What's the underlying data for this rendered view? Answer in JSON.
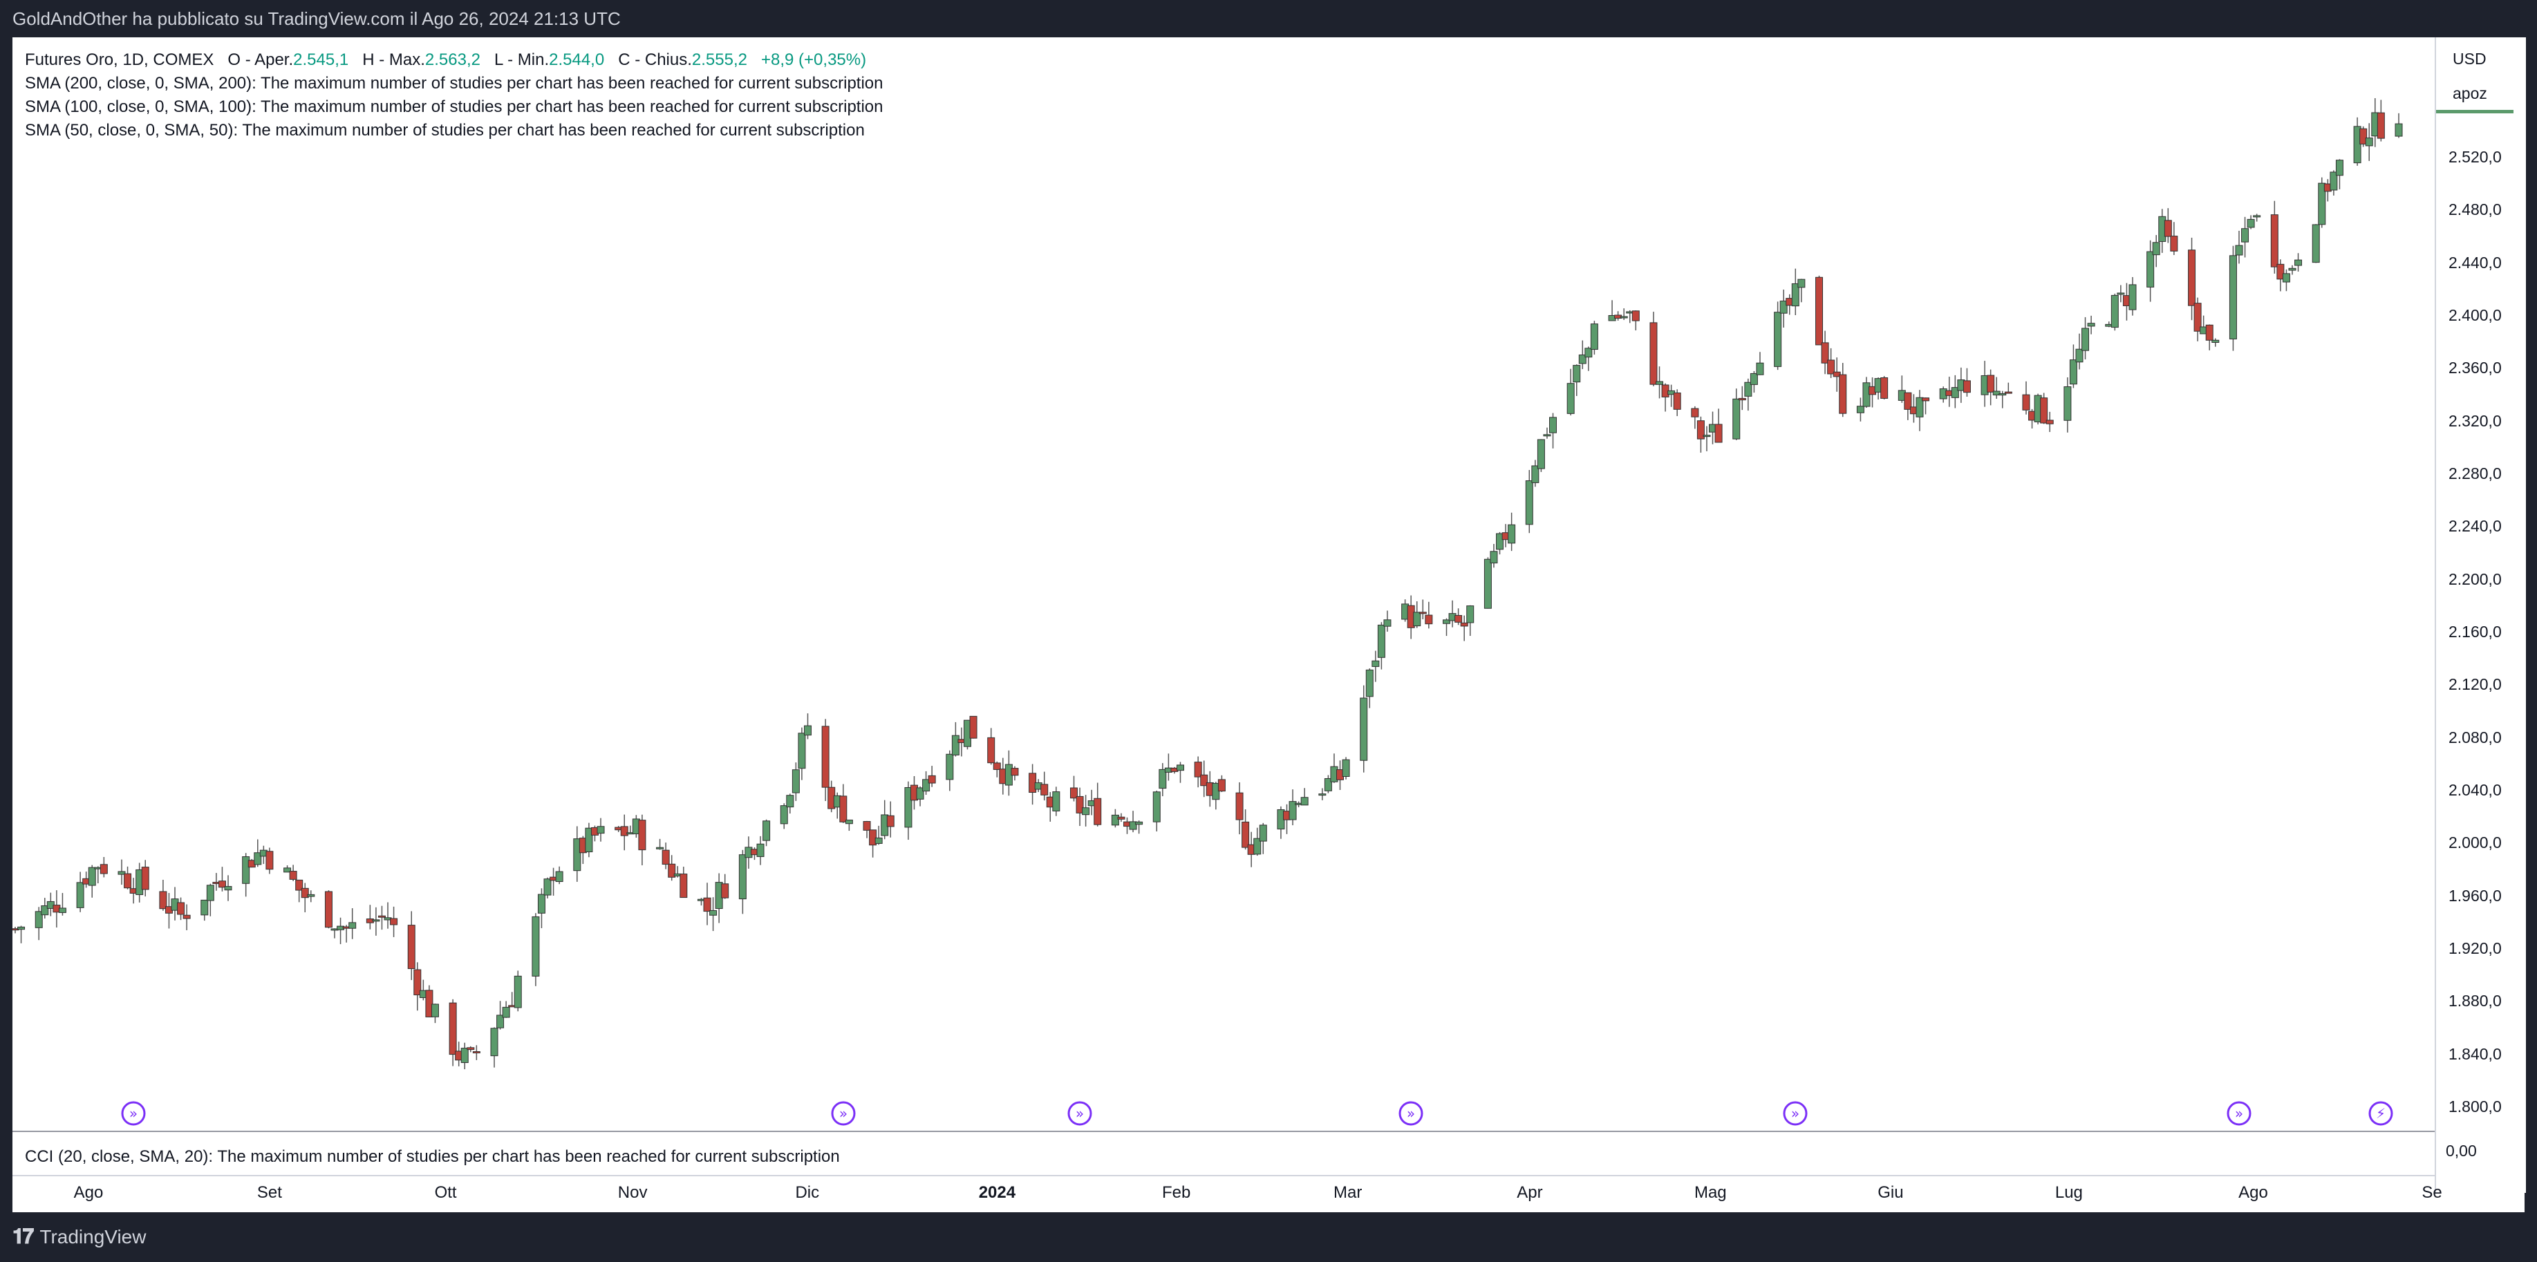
{
  "header": {
    "published": "GoldAndOther ha pubblicato su TradingView.com il Ago 26, 2024 21:13 UTC"
  },
  "legend": {
    "symbol": "Futures Oro, 1D, COMEX",
    "open_label": "O - Aper.",
    "open": "2.545,1",
    "high_label": "H - Max.",
    "high": "2.563,2",
    "low_label": "L - Min.",
    "low": "2.544,0",
    "close_label": "C - Chius.",
    "close": "2.555,2",
    "change": "+8,9 (+0,35%)",
    "studies": [
      "SMA (200, close, 0, SMA, 200): The maximum number of studies per chart has been reached for current subscription",
      "SMA (100, close, 0, SMA, 100): The maximum number of studies per chart has been reached for current subscription",
      "SMA (50, close, 0, SMA, 50): The maximum number of studies per chart has been reached for current subscription"
    ]
  },
  "cci": {
    "legend": "CCI (20, close, SMA, 20): The maximum number of studies per chart has been reached for current subscription",
    "value": "0,00"
  },
  "price_axis": {
    "currency": "USD",
    "mode": "apoz",
    "labels": [
      "2.520,0",
      "2.480,0",
      "2.440,0",
      "2.400,0",
      "2.360,0",
      "2.320,0",
      "2.280,0",
      "2.240,0",
      "2.200,0",
      "2.160,0",
      "2.120,0",
      "2.080,0",
      "2.040,0",
      "2.000,0",
      "1.960,0",
      "1.920,0",
      "1.880,0",
      "1.840,0",
      "1.800,0"
    ]
  },
  "time_axis": {
    "labels": [
      "Ago",
      "Set",
      "Ott",
      "Nov",
      "Dic",
      "2024",
      "Feb",
      "Mar",
      "Apr",
      "Mag",
      "Giu",
      "Lug",
      "Ago",
      "Se"
    ]
  },
  "footer": {
    "brand": "TradingView"
  },
  "colors": {
    "up": "#5b9a6b",
    "down": "#c0443b",
    "event": "#7b2ff7",
    "last_price_line": "#5b9a6b"
  },
  "icons": {
    "events": [
      "dividend-arrow-icon",
      "dividend-arrow-icon",
      "dividend-arrow-icon",
      "dividend-arrow-icon",
      "dividend-arrow-icon",
      "dividend-arrow-icon",
      "lightning-icon"
    ]
  },
  "chart_data": {
    "type": "candlestick",
    "title": "Futures Oro, 1D, COMEX",
    "x_range": [
      "2023-07-20",
      "2024-08-26"
    ],
    "ylim": [
      1800,
      2560
    ],
    "ohlc_sampled": {
      "note_values_per_point": "close",
      "points": [
        [
          "2023-07-20",
          1935
        ],
        [
          "2023-07-27",
          1955
        ],
        [
          "2023-08-03",
          1985
        ],
        [
          "2023-08-10",
          1970
        ],
        [
          "2023-08-17",
          1945
        ],
        [
          "2023-08-24",
          1975
        ],
        [
          "2023-08-31",
          1995
        ],
        [
          "2023-09-07",
          1960
        ],
        [
          "2023-09-14",
          1935
        ],
        [
          "2023-09-21",
          1945
        ],
        [
          "2023-09-28",
          1875
        ],
        [
          "2023-10-03",
          1840
        ],
        [
          "2023-10-05",
          1835
        ],
        [
          "2023-10-12",
          1885
        ],
        [
          "2023-10-19",
          1980
        ],
        [
          "2023-10-26",
          2005
        ],
        [
          "2023-11-02",
          2010
        ],
        [
          "2023-11-09",
          1975
        ],
        [
          "2023-11-14",
          1950
        ],
        [
          "2023-11-21",
          1995
        ],
        [
          "2023-11-28",
          2045
        ],
        [
          "2023-12-01",
          2090
        ],
        [
          "2023-12-04",
          2040
        ],
        [
          "2023-12-12",
          2000
        ],
        [
          "2023-12-19",
          2040
        ],
        [
          "2023-12-28",
          2090
        ],
        [
          "2024-01-04",
          2050
        ],
        [
          "2024-01-11",
          2030
        ],
        [
          "2024-01-18",
          2025
        ],
        [
          "2024-01-25",
          2020
        ],
        [
          "2024-02-01",
          2060
        ],
        [
          "2024-02-08",
          2035
        ],
        [
          "2024-02-14",
          2000
        ],
        [
          "2024-02-22",
          2035
        ],
        [
          "2024-02-29",
          2050
        ],
        [
          "2024-03-05",
          2125
        ],
        [
          "2024-03-08",
          2180
        ],
        [
          "2024-03-15",
          2165
        ],
        [
          "2024-03-21",
          2165
        ],
        [
          "2024-03-28",
          2235
        ],
        [
          "2024-04-04",
          2315
        ],
        [
          "2024-04-11",
          2375
        ],
        [
          "2024-04-12",
          2400
        ],
        [
          "2024-04-18",
          2400
        ],
        [
          "2024-04-23",
          2345
        ],
        [
          "2024-04-30",
          2310
        ],
        [
          "2024-05-03",
          2310
        ],
        [
          "2024-05-10",
          2375
        ],
        [
          "2024-05-17",
          2420
        ],
        [
          "2024-05-24",
          2335
        ],
        [
          "2024-05-31",
          2345
        ],
        [
          "2024-06-07",
          2325
        ],
        [
          "2024-06-14",
          2350
        ],
        [
          "2024-06-21",
          2340
        ],
        [
          "2024-06-28",
          2325
        ],
        [
          "2024-07-05",
          2390
        ],
        [
          "2024-07-12",
          2420
        ],
        [
          "2024-07-17",
          2465
        ],
        [
          "2024-07-25",
          2375
        ],
        [
          "2024-08-01",
          2480
        ],
        [
          "2024-08-07",
          2430
        ],
        [
          "2024-08-14",
          2500
        ],
        [
          "2024-08-20",
          2540
        ],
        [
          "2024-08-23",
          2545
        ],
        [
          "2024-08-26",
          2555
        ]
      ]
    },
    "last_price": 2555.2
  }
}
